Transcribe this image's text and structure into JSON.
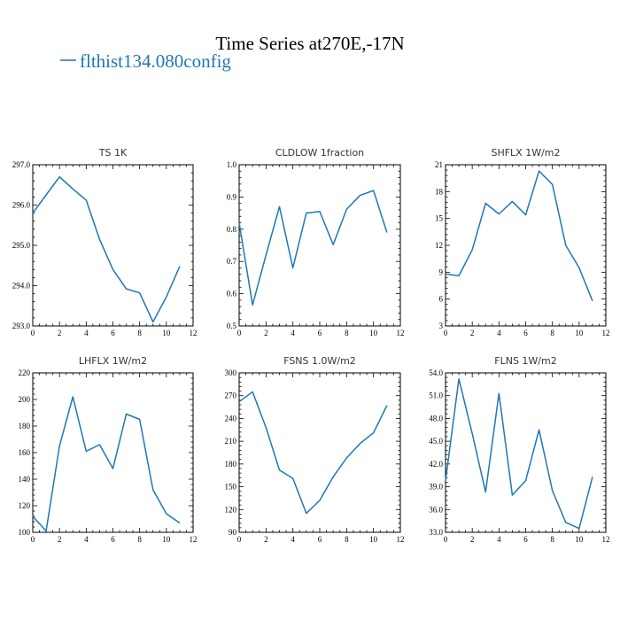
{
  "figure": {
    "title": "Time Series at270E,-17N",
    "legend_label": "flthist134.080config",
    "line_color": "#1f77b4"
  },
  "chart_data": [
    {
      "type": "line",
      "title": "TS   1K",
      "x": [
        0,
        1,
        2,
        3,
        4,
        5,
        6,
        7,
        8,
        9,
        10,
        11
      ],
      "values": [
        295.8,
        296.25,
        296.7,
        296.4,
        296.12,
        295.15,
        294.4,
        293.92,
        293.82,
        293.1,
        293.72,
        294.48
      ],
      "xlim": [
        0,
        12
      ],
      "ylim": [
        293.0,
        297.0
      ],
      "xticks": [
        0,
        2,
        4,
        6,
        8,
        10,
        12
      ],
      "yticks": [
        "293.0",
        "294.0",
        "295.0",
        "296.0",
        "297.0"
      ]
    },
    {
      "type": "line",
      "title": "CLDLOW   1fraction",
      "x": [
        0,
        1,
        2,
        3,
        4,
        5,
        6,
        7,
        8,
        9,
        10,
        11
      ],
      "values": [
        0.82,
        0.565,
        0.72,
        0.87,
        0.68,
        0.85,
        0.855,
        0.752,
        0.862,
        0.905,
        0.92,
        0.79
      ],
      "xlim": [
        0,
        12
      ],
      "ylim": [
        0.5,
        1.0
      ],
      "xticks": [
        0,
        2,
        4,
        6,
        8,
        10,
        12
      ],
      "yticks": [
        "0.5",
        "0.6",
        "0.7",
        "0.8",
        "0.9",
        "1.0"
      ]
    },
    {
      "type": "line",
      "title": "SHFLX   1W/m2",
      "x": [
        0,
        1,
        2,
        3,
        4,
        5,
        6,
        7,
        8,
        9,
        10,
        11
      ],
      "values": [
        8.8,
        8.6,
        11.5,
        16.7,
        15.5,
        16.9,
        15.4,
        20.3,
        18.8,
        12.0,
        9.5,
        5.8
      ],
      "xlim": [
        0,
        12
      ],
      "ylim": [
        3,
        21
      ],
      "xticks": [
        0,
        2,
        4,
        6,
        8,
        10,
        12
      ],
      "yticks": [
        "3",
        "6",
        "9",
        "12",
        "15",
        "18",
        "21"
      ]
    },
    {
      "type": "line",
      "title": "LHFLX   1W/m2",
      "x": [
        0,
        1,
        2,
        3,
        4,
        5,
        6,
        7,
        8,
        9,
        10,
        11
      ],
      "values": [
        112,
        101,
        165,
        202,
        161,
        166,
        148,
        189,
        185,
        132,
        114,
        107
      ],
      "xlim": [
        0,
        12
      ],
      "ylim": [
        100,
        220
      ],
      "xticks": [
        0,
        2,
        4,
        6,
        8,
        10,
        12
      ],
      "yticks": [
        "100",
        "120",
        "140",
        "160",
        "180",
        "200",
        "220"
      ]
    },
    {
      "type": "line",
      "title": "FSNS   1.0W/m2",
      "x": [
        0,
        1,
        2,
        3,
        4,
        5,
        6,
        7,
        8,
        9,
        10,
        11
      ],
      "values": [
        262,
        275,
        228,
        172,
        161,
        115,
        132,
        163,
        188,
        207,
        221,
        257
      ],
      "xlim": [
        0,
        12
      ],
      "ylim": [
        90,
        300
      ],
      "xticks": [
        0,
        2,
        4,
        6,
        8,
        10,
        12
      ],
      "yticks": [
        "90",
        "120",
        "150",
        "180",
        "210",
        "240",
        "270",
        "300"
      ]
    },
    {
      "type": "line",
      "title": "FLNS   1W/m2",
      "x": [
        0,
        1,
        2,
        3,
        4,
        5,
        6,
        7,
        8,
        9,
        10,
        11
      ],
      "values": [
        39.8,
        53.2,
        46.0,
        38.3,
        51.3,
        37.9,
        39.8,
        46.5,
        38.5,
        34.3,
        33.5,
        40.3
      ],
      "xlim": [
        0,
        12
      ],
      "ylim": [
        33.0,
        54.0
      ],
      "xticks": [
        0,
        2,
        4,
        6,
        8,
        10,
        12
      ],
      "yticks": [
        "33.0",
        "36.0",
        "39.0",
        "42.0",
        "45.0",
        "48.0",
        "51.0",
        "54.0"
      ]
    }
  ]
}
